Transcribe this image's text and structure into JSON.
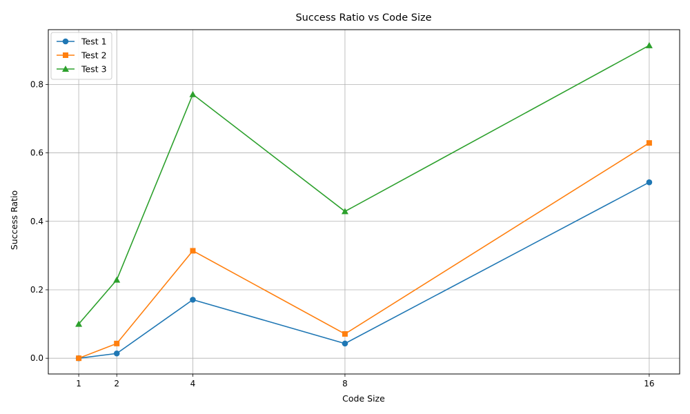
{
  "chart_data": {
    "type": "line",
    "title": "Success Ratio vs Code Size",
    "xlabel": "Code Size",
    "ylabel": "Success Ratio",
    "x": [
      1,
      2,
      4,
      8,
      16
    ],
    "xticks": [
      "1",
      "2",
      "4",
      "8",
      "16"
    ],
    "xlim": [
      0.2,
      16.8
    ],
    "yticks": [
      "0.0",
      "0.2",
      "0.4",
      "0.6",
      "0.8"
    ],
    "ytick_values": [
      0.0,
      0.2,
      0.4,
      0.6,
      0.8
    ],
    "ylim": [
      -0.046,
      0.96
    ],
    "grid": true,
    "legend_position": "top-left",
    "series": [
      {
        "name": "Test 1",
        "marker": "circle",
        "color": "#1f77b4",
        "values": [
          0.0,
          0.014,
          0.171,
          0.043,
          0.514
        ]
      },
      {
        "name": "Test 2",
        "marker": "square",
        "color": "#ff7f0e",
        "values": [
          0.0,
          0.043,
          0.314,
          0.071,
          0.629
        ]
      },
      {
        "name": "Test 3",
        "marker": "triangle",
        "color": "#2ca02c",
        "values": [
          0.1,
          0.229,
          0.771,
          0.429,
          0.914
        ]
      }
    ]
  }
}
